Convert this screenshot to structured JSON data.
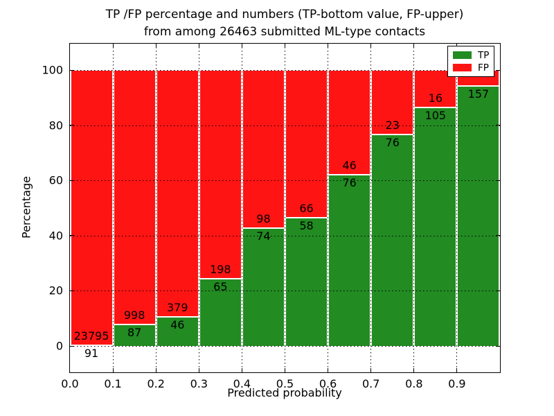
{
  "title": {
    "line1": "TP /FP percentage and numbers (TP-bottom value, FP-upper)",
    "line2": "from among 26463 submitted ML-type contacts"
  },
  "axes": {
    "xlabel": "Predicted probability",
    "ylabel": "Percentage",
    "xtick_labels": [
      "0.0",
      "0.1",
      "0.2",
      "0.3",
      "0.4",
      "0.5",
      "0.6",
      "0.7",
      "0.8",
      "0.9"
    ],
    "ytick_labels": [
      "0",
      "20",
      "40",
      "60",
      "80",
      "100"
    ],
    "ytick_values": [
      0,
      20,
      40,
      60,
      80,
      100
    ],
    "ylim": [
      -10.8,
      109.6
    ],
    "xlim": [
      0.0,
      1.0
    ],
    "grid": "dotted black, horizontal at yticks and vertical at xticks"
  },
  "legend": [
    {
      "label": "TP",
      "color": "#228b22"
    },
    {
      "label": "FP",
      "color": "#ff1414"
    }
  ],
  "colors": {
    "tp_green": "#228b22",
    "fp_red": "#ff1414",
    "bar_edge": "#ffffff",
    "spine": "#000000",
    "text": "#000000",
    "background": "#ffffff"
  },
  "chart_data": {
    "type": "bar",
    "subtype": "stacked-percentage",
    "title": "TP /FP percentage and numbers (TP-bottom value, FP-upper) from among 26463 submitted ML-type contacts",
    "xlabel": "Predicted probability",
    "ylabel": "Percentage",
    "total_contacts": 26463,
    "note": "Each bin stacks to 100%. TP (green) bottom, FP (red) top. Numbers printed at the TP/FP boundary: FP count above, TP count below. FP count of last bin is hidden behind the legend.",
    "bins": [
      {
        "range": "0.0-0.1",
        "tp": 91,
        "fp": 23795,
        "tp_label": "91",
        "fp_label": "23795",
        "tp_pct": 0.38
      },
      {
        "range": "0.1-0.2",
        "tp": 87,
        "fp": 998,
        "tp_label": "87",
        "fp_label": "998",
        "tp_pct": 8.02
      },
      {
        "range": "0.2-0.3",
        "tp": 46,
        "fp": 379,
        "tp_label": "46",
        "fp_label": "379",
        "tp_pct": 10.82
      },
      {
        "range": "0.3-0.4",
        "tp": 65,
        "fp": 198,
        "tp_label": "65",
        "fp_label": "198",
        "tp_pct": 24.71
      },
      {
        "range": "0.4-0.5",
        "tp": 74,
        "fp": 98,
        "tp_label": "74",
        "fp_label": "98",
        "tp_pct": 43.02
      },
      {
        "range": "0.5-0.6",
        "tp": 58,
        "fp": 66,
        "tp_label": "58",
        "fp_label": "66",
        "tp_pct": 46.77
      },
      {
        "range": "0.6-0.7",
        "tp": 76,
        "fp": 46,
        "tp_label": "76",
        "fp_label": "46",
        "tp_pct": 62.3
      },
      {
        "range": "0.7-0.8",
        "tp": 76,
        "fp": 23,
        "tp_label": "76",
        "fp_label": "23",
        "tp_pct": 76.77
      },
      {
        "range": "0.8-0.9",
        "tp": 105,
        "fp": 16,
        "tp_label": "105",
        "fp_label": "16",
        "tp_pct": 86.78
      },
      {
        "range": "0.9-1.0",
        "tp": 157,
        "fp": null,
        "tp_label": "157",
        "fp_label": "",
        "tp_pct": 94.58
      }
    ]
  }
}
